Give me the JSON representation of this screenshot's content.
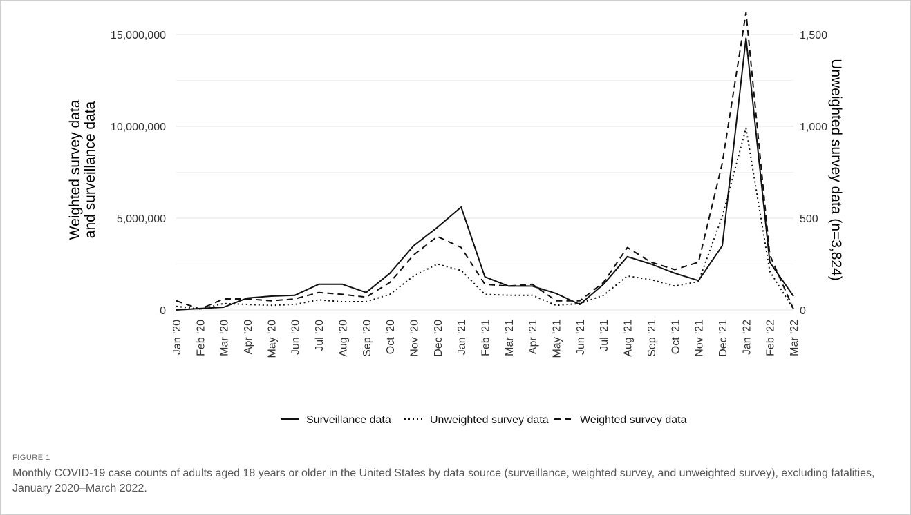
{
  "figure_label": "FIGURE 1",
  "caption": "Monthly COVID-19 case counts of adults aged 18 years or older in the United States by data source (surveillance, weighted survey, and unweighted survey), excluding fatalities, January 2020–March 2022.",
  "chart_data": {
    "type": "line",
    "title": "",
    "x": [
      "Jan '20",
      "Feb '20",
      "Mar '20",
      "Apr '20",
      "May '20",
      "Jun '20",
      "Jul '20",
      "Aug '20",
      "Sep '20",
      "Oct '20",
      "Nov '20",
      "Dec '20",
      "Jan '21",
      "Feb '21",
      "Mar '21",
      "Apr '21",
      "May '21",
      "Jun '21",
      "Jul '21",
      "Aug '21",
      "Sep '21",
      "Oct '21",
      "Nov '21",
      "Dec '21",
      "Jan '22",
      "Feb '22",
      "Mar '22"
    ],
    "ylabel": "Weighted survey data and surveillance data",
    "ylabel_lines": [
      "Weighted survey data",
      "and surveillance data"
    ],
    "y2label": "Unweighted survey data (n=3,824)",
    "ylim": [
      0,
      16500000
    ],
    "y2lim": [
      0,
      1650
    ],
    "yticks": [
      0,
      5000000,
      10000000,
      15000000
    ],
    "yticklabels": [
      "0",
      "5,000,000",
      "10,000,000",
      "15,000,000"
    ],
    "y2ticks": [
      0,
      500,
      1000,
      1500
    ],
    "y2ticklabels": [
      "0",
      "500",
      "1,000",
      "1,500"
    ],
    "grid": "horizontal",
    "legend_position": "bottom",
    "series": [
      {
        "name": "Surveillance data",
        "axis": "left",
        "dash": "solid",
        "values": [
          0,
          80000,
          150000,
          650000,
          750000,
          800000,
          1400000,
          1400000,
          950000,
          2000000,
          3500000,
          4500000,
          5600000,
          1800000,
          1300000,
          1300000,
          900000,
          300000,
          1400000,
          2900000,
          2500000,
          2000000,
          1600000,
          3500000,
          14800000,
          2600000,
          750000
        ]
      },
      {
        "name": "Unweighted survey data",
        "axis": "right",
        "dash": "dotted",
        "values": [
          20,
          5,
          35,
          30,
          25,
          30,
          55,
          45,
          45,
          85,
          185,
          250,
          215,
          85,
          80,
          80,
          25,
          35,
          80,
          185,
          165,
          130,
          155,
          510,
          990,
          210,
          5
        ]
      },
      {
        "name": "Weighted survey data",
        "axis": "left",
        "dash": "dashed",
        "values": [
          500000,
          50000,
          600000,
          600000,
          500000,
          600000,
          950000,
          850000,
          700000,
          1500000,
          3000000,
          4000000,
          3400000,
          1400000,
          1300000,
          1400000,
          500000,
          500000,
          1500000,
          3400000,
          2600000,
          2200000,
          2600000,
          8000000,
          16200000,
          3000000,
          50000
        ]
      }
    ]
  }
}
